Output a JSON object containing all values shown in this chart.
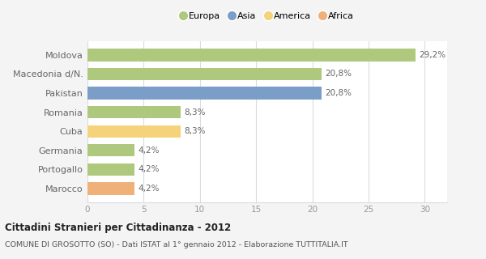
{
  "categories": [
    "Moldova",
    "Macedonia d/N.",
    "Pakistan",
    "Romania",
    "Cuba",
    "Germania",
    "Portogallo",
    "Marocco"
  ],
  "values": [
    29.2,
    20.8,
    20.8,
    8.3,
    8.3,
    4.2,
    4.2,
    4.2
  ],
  "labels": [
    "29,2%",
    "20,8%",
    "20,8%",
    "8,3%",
    "8,3%",
    "4,2%",
    "4,2%",
    "4,2%"
  ],
  "colors": [
    "#aec97e",
    "#aec97e",
    "#7b9ec9",
    "#aec97e",
    "#f5d37a",
    "#aec97e",
    "#aec97e",
    "#f0b07a"
  ],
  "legend": [
    {
      "label": "Europa",
      "color": "#aec97e"
    },
    {
      "label": "Asia",
      "color": "#7b9ec9"
    },
    {
      "label": "America",
      "color": "#f5d37a"
    },
    {
      "label": "Africa",
      "color": "#f0b07a"
    }
  ],
  "xlim": [
    0,
    32
  ],
  "xticks": [
    0,
    5,
    10,
    15,
    20,
    25,
    30
  ],
  "title": "Cittadini Stranieri per Cittadinanza - 2012",
  "subtitle": "COMUNE DI GROSOTTO (SO) - Dati ISTAT al 1° gennaio 2012 - Elaborazione TUTTITALIA.IT",
  "bg_color": "#f4f4f4",
  "plot_bg_color": "#ffffff",
  "grid_color": "#d8dde2",
  "label_color": "#666666",
  "tick_color": "#999999"
}
